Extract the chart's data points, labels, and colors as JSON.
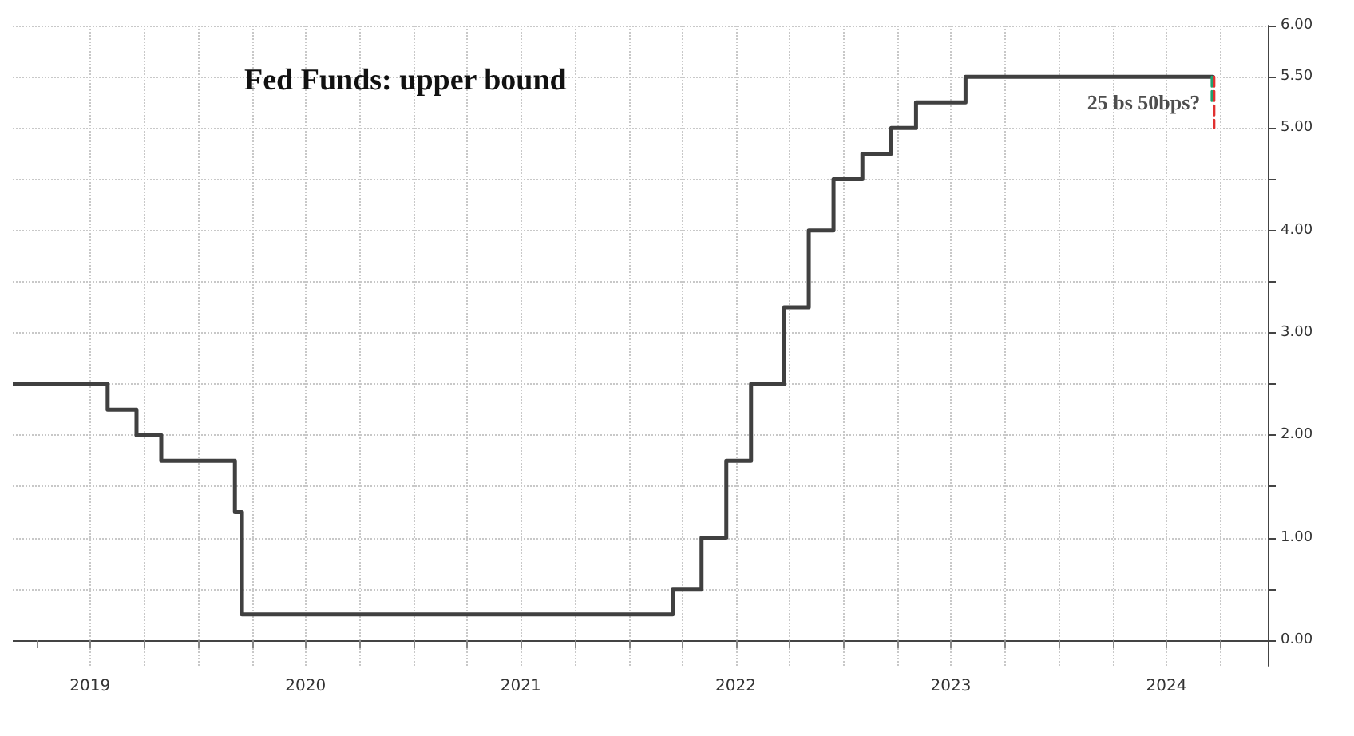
{
  "chart_data": {
    "type": "step",
    "title": "Fed Funds: upper bound",
    "x": [
      "2019-02-20",
      "2019-07-31",
      "2019-09-18",
      "2019-10-30",
      "2020-03-03",
      "2020-03-15",
      "2022-03-16",
      "2022-05-04",
      "2022-06-15",
      "2022-07-27",
      "2022-09-21",
      "2022-11-02",
      "2022-12-14",
      "2023-02-01",
      "2023-03-22",
      "2023-05-03",
      "2023-07-26",
      "2024-09-18"
    ],
    "series": [
      {
        "color": "#404040",
        "values": [
          2.5,
          2.25,
          2.0,
          1.75,
          1.25,
          0.25,
          0.5,
          1.0,
          1.75,
          2.5,
          3.25,
          4.0,
          4.5,
          4.75,
          5.0,
          5.25,
          5.5,
          5.5
        ]
      },
      {
        "line_style": "dashed",
        "color": "#e03030",
        "x": [
          "2024-09-20",
          "2024-09-20"
        ],
        "values": [
          5.5,
          5.0
        ]
      },
      {
        "line_style": "dashed",
        "color": "#20a070",
        "x": [
          "2024-09-16",
          "2024-09-16"
        ],
        "values": [
          5.5,
          5.25
        ]
      }
    ],
    "annotations": [
      {
        "text": "25 bs 50bps?",
        "x": "2024-09-18",
        "y": 5.25
      }
    ],
    "xlim": [
      "2019-02-20",
      "2024-12-20"
    ],
    "xticks": [
      {
        "value": "2019-04-01",
        "label": null
      },
      {
        "value": "2019-07-01",
        "label": "2019"
      },
      {
        "value": "2019-10-01",
        "label": null
      },
      {
        "value": "2020-01-01",
        "label": null
      },
      {
        "value": "2020-04-01",
        "label": null
      },
      {
        "value": "2020-07-01",
        "label": "2020"
      },
      {
        "value": "2020-10-01",
        "label": null
      },
      {
        "value": "2021-01-01",
        "label": null
      },
      {
        "value": "2021-04-01",
        "label": null
      },
      {
        "value": "2021-07-01",
        "label": "2021"
      },
      {
        "value": "2021-10-01",
        "label": null
      },
      {
        "value": "2022-01-01",
        "label": null
      },
      {
        "value": "2022-04-01",
        "label": null
      },
      {
        "value": "2022-07-01",
        "label": "2022"
      },
      {
        "value": "2022-10-01",
        "label": null
      },
      {
        "value": "2023-01-01",
        "label": null
      },
      {
        "value": "2023-04-01",
        "label": null
      },
      {
        "value": "2023-07-01",
        "label": "2023"
      },
      {
        "value": "2023-10-01",
        "label": null
      },
      {
        "value": "2024-01-01",
        "label": null
      },
      {
        "value": "2024-04-01",
        "label": null
      },
      {
        "value": "2024-07-01",
        "label": "2024"
      },
      {
        "value": "2024-10-01",
        "label": null
      }
    ],
    "ylim": [
      -0.25,
      6
    ],
    "yticks": [
      {
        "value": 0,
        "label": "0.00"
      },
      {
        "value": 0.5,
        "label": null
      },
      {
        "value": 1,
        "label": "1.00"
      },
      {
        "value": 1.5,
        "label": null
      },
      {
        "value": 2,
        "label": "2.00"
      },
      {
        "value": 2.5,
        "label": null
      },
      {
        "value": 3,
        "label": "3.00"
      },
      {
        "value": 3.5,
        "label": null
      },
      {
        "value": 4,
        "label": "4.00"
      },
      {
        "value": 4.5,
        "label": null
      },
      {
        "value": 5,
        "label": "5.00"
      },
      {
        "value": 5.5,
        "label": "5.50"
      },
      {
        "value": 6,
        "label": "6.00"
      }
    ],
    "grid": true,
    "marker": "none",
    "line_style": "solid"
  }
}
